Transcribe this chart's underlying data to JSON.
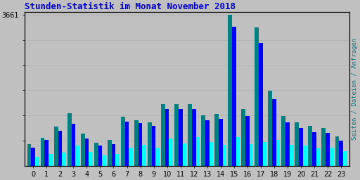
{
  "title": "Stunden-Statistik im Monat November 2018",
  "title_color": "#0000cc",
  "background_color": "#c0c0c0",
  "plot_bg_color": "#c0c0c0",
  "ylabel_right": "Seiten / Dateien / Anfragen",
  "ytick_label": "3661",
  "hours": [
    0,
    1,
    2,
    3,
    4,
    5,
    6,
    7,
    8,
    9,
    10,
    11,
    12,
    13,
    14,
    15,
    16,
    17,
    18,
    19,
    20,
    21,
    22,
    23
  ],
  "green_bars": [
    520,
    680,
    950,
    1280,
    770,
    560,
    620,
    1180,
    1100,
    1060,
    1500,
    1490,
    1490,
    1220,
    1260,
    3661,
    1380,
    3350,
    1820,
    1200,
    1060,
    960,
    920,
    710
  ],
  "blue_bars": [
    440,
    620,
    840,
    1020,
    660,
    490,
    530,
    1070,
    1030,
    970,
    1380,
    1370,
    1370,
    1110,
    1140,
    3380,
    1210,
    2980,
    1620,
    1060,
    910,
    810,
    800,
    600
  ],
  "cyan_bars": [
    210,
    290,
    320,
    490,
    340,
    255,
    275,
    440,
    500,
    440,
    660,
    540,
    700,
    570,
    510,
    690,
    520,
    570,
    630,
    500,
    490,
    420,
    430,
    360
  ],
  "green_color": "#008080",
  "blue_color": "#0000ff",
  "cyan_color": "#00ffff",
  "bar_width": 0.3,
  "ylim_max": 3661,
  "ytick_pos": 3661,
  "grid_y_ticks": [
    610,
    1220,
    1830,
    2440,
    3050,
    3661
  ],
  "grid_color": "#b0b0b0",
  "border_color": "#000000",
  "font_color_right": "#008080",
  "xtick_fontsize": 7,
  "ytick_fontsize": 7,
  "title_fontsize": 9
}
